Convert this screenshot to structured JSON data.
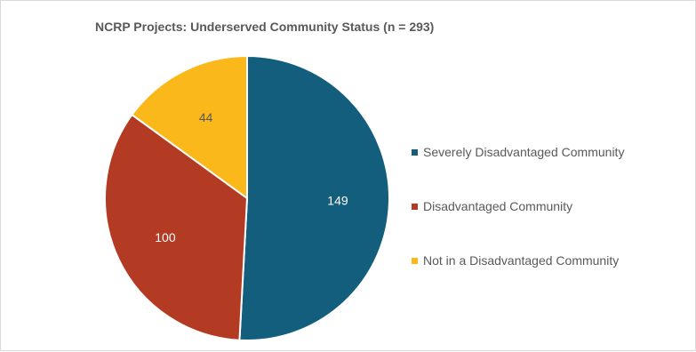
{
  "chart_data": {
    "type": "pie",
    "title": "NCRP Projects: Underserved Community Status (n = 293)",
    "slices": [
      {
        "label": "Severely Disadvantaged Community",
        "value": 149,
        "color": "#135e7c"
      },
      {
        "label": "Disadvantaged Community",
        "value": 100,
        "color": "#b43b23"
      },
      {
        "label": "Not in a Disadvantaged Community",
        "value": 44,
        "color": "#fbb81a"
      }
    ],
    "data_labels_shown": true,
    "legend_position": "right"
  }
}
